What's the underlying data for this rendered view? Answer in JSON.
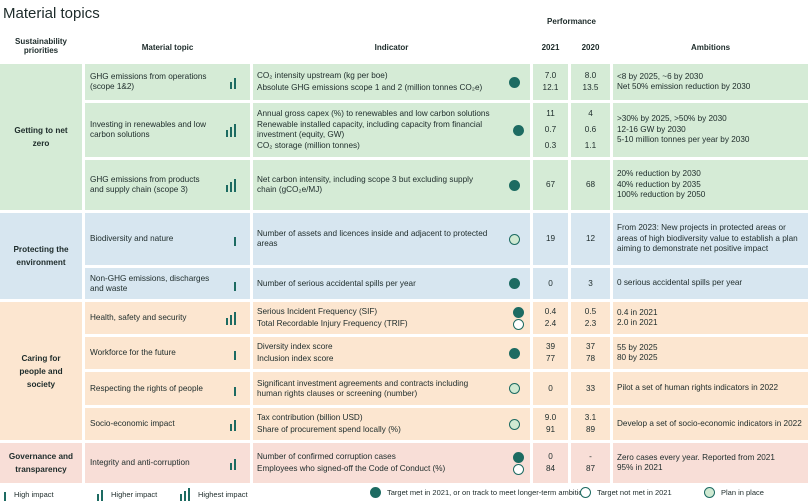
{
  "title": "Material topics",
  "header": {
    "priorities": "Sustainability priorities",
    "topic": "Material topic",
    "indicator": "Indicator",
    "performance": "Performance",
    "year1": "2021",
    "year2": "2020",
    "ambitions": "Ambitions"
  },
  "groups": [
    {
      "name": "Getting to net zero",
      "color": "#d5ebd6",
      "topics": [
        {
          "name": "GHG emissions from operations (scope 1&2)",
          "impact": 2,
          "status": 0,
          "indicators": [
            {
              "text": "CO₂ intensity upstream (kg per boe)",
              "v2021": "7.0",
              "v2020": "8.0"
            },
            {
              "text": "Absolute GHG emissions scope 1 and 2 (million tonnes CO₂e)",
              "v2021": "12.1",
              "v2020": "13.5"
            }
          ],
          "ambitions": [
            "<8 by 2025, ~6 by 2030",
            "Net 50% emission reduction by 2030"
          ]
        },
        {
          "name": "Investing in renewables and low carbon solutions",
          "impact": 3,
          "indicators": [
            {
              "text": "Annual gross capex (%) to renewables and low carbon solutions",
              "v2021": "11",
              "v2020": "4"
            },
            {
              "text": "Renewable installed capacity, including capacity from financial investment (equity, GW)",
              "v2021": "0.7",
              "v2020": "0.6",
              "status": 0
            },
            {
              "text": "CO₂ storage (million tonnes)",
              "v2021": "0.3",
              "v2020": "1.1"
            }
          ],
          "ambitions": [
            ">30% by 2025, >50% by 2030",
            "12-16 GW by 2030",
            "5-10 million tonnes per year by 2030"
          ]
        },
        {
          "name": "GHG emissions from products and supply chain (scope 3)",
          "impact": 3,
          "status": 0,
          "indicators": [
            {
              "text": "Net carbon intensity, including scope 3 but excluding supply chain (gCO₂e/MJ)",
              "v2021": "67",
              "v2020": "68"
            }
          ],
          "ambitions": [
            "20% reduction by 2030",
            "40% reduction by 2035",
            "100% reduction by 2050"
          ]
        }
      ]
    },
    {
      "name": "Protecting the environment",
      "color": "#d7e6f0",
      "topics": [
        {
          "name": "Biodiversity and nature",
          "impact": 1,
          "status": 2,
          "indicators": [
            {
              "text": "Number of assets and licences inside and adjacent to protected areas",
              "v2021": "19",
              "v2020": "12"
            }
          ],
          "ambitions": [
            "From 2023: New projects in protected areas or areas of high biodiversity value to establish a plan aiming to demonstrate net positive impact"
          ]
        },
        {
          "name": "Non-GHG emissions, discharges and waste",
          "impact": 1,
          "status": 0,
          "indicators": [
            {
              "text": "Number of serious accidental spills per year",
              "v2021": "0",
              "v2020": "3"
            }
          ],
          "ambitions": [
            "0 serious accidental spills per year"
          ]
        }
      ]
    },
    {
      "name": "Caring for people and society",
      "color": "#fce6d0",
      "topics": [
        {
          "name": "Health, safety and security",
          "impact": 3,
          "indicators": [
            {
              "text": "Serious Incident Frequency (SIF)",
              "v2021": "0.4",
              "v2020": "0.5",
              "status": 0
            },
            {
              "text": "Total Recordable Injury Frequency (TRIF)",
              "v2021": "2.4",
              "v2020": "2.3",
              "status": 1
            }
          ],
          "ambitions": [
            "0.4 in 2021",
            "2.0 in 2021"
          ]
        },
        {
          "name": "Workforce for the future",
          "impact": 1,
          "status": 0,
          "indicators": [
            {
              "text": "Diversity index score",
              "v2021": "39",
              "v2020": "37"
            },
            {
              "text": "Inclusion index score",
              "v2021": "77",
              "v2020": "78"
            }
          ],
          "ambitions": [
            "55 by 2025",
            "80 by 2025"
          ]
        },
        {
          "name": "Respecting the rights of people",
          "impact": 1,
          "status": 2,
          "indicators": [
            {
              "text": "Significant investment agreements and contracts including human rights clauses or screening (number)",
              "v2021": "0",
              "v2020": "33"
            }
          ],
          "ambitions": [
            "Pilot a set of human rights indicators in 2022"
          ]
        },
        {
          "name": "Socio-economic impact",
          "impact": 2,
          "status": 2,
          "indicators": [
            {
              "text": "Tax contribution (billion USD)",
              "v2021": "9.0",
              "v2020": "3.1"
            },
            {
              "text": "Share of procurement spend locally (%)",
              "v2021": "91",
              "v2020": "89"
            }
          ],
          "ambitions": [
            "Develop a set of socio-economic indicators in 2022"
          ]
        }
      ]
    },
    {
      "name": "Governance and transparency",
      "color": "#f8ded7",
      "topics": [
        {
          "name": "Integrity and anti-corruption",
          "impact": 2,
          "indicators": [
            {
              "text": "Number of confirmed corruption cases",
              "v2021": "0",
              "v2020": "-",
              "status": 0
            },
            {
              "text": "Employees who signed-off the Code of Conduct (%)",
              "v2021": "84",
              "v2020": "87",
              "status": 1
            }
          ],
          "ambitions": [
            "Zero cases every year. Reported from 2021",
            "95% in 2021"
          ]
        }
      ]
    }
  ],
  "legend": {
    "impact": [
      "High impact",
      "Higher impact",
      "Highest impact"
    ],
    "status": [
      "Target met in 2021, or on track to meet longer-term ambition",
      "Target not met in 2021",
      "Plan in place"
    ]
  }
}
